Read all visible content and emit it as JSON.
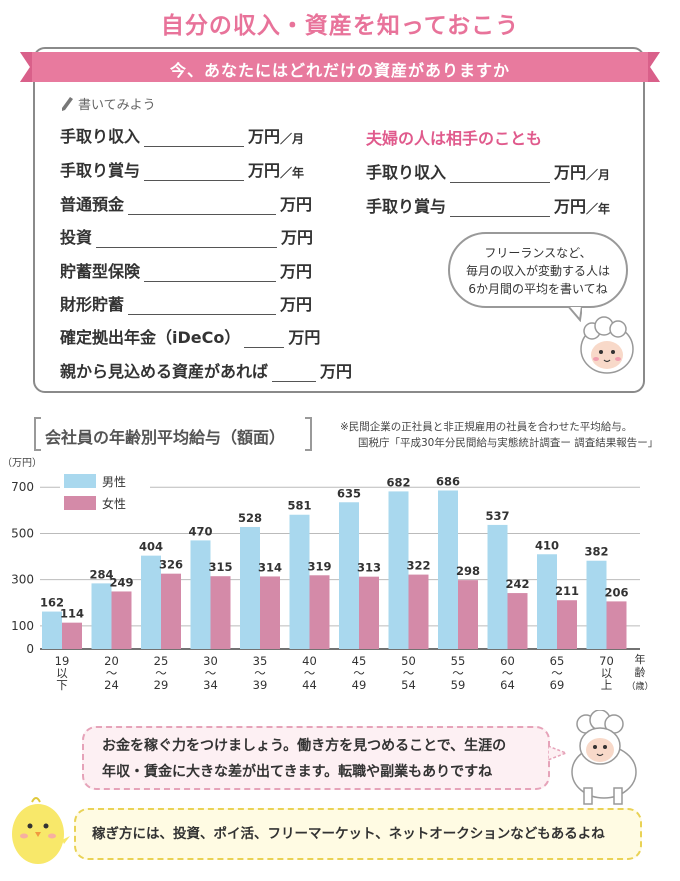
{
  "title": "自分の収入・資産を知っておこう",
  "section": {
    "ribbon_label": "今、あなたにはどれだけの資産がありますか",
    "write_hint": "書いてみよう",
    "left_items": [
      {
        "label": "手取り収入",
        "unit": "万円",
        "suffix": "／月"
      },
      {
        "label": "手取り賞与",
        "unit": "万円",
        "suffix": "／年"
      },
      {
        "label": "普通預金",
        "unit": "万円",
        "suffix": ""
      },
      {
        "label": "投資",
        "unit": "万円",
        "suffix": ""
      },
      {
        "label": "貯蓄型保険",
        "unit": "万円",
        "suffix": ""
      },
      {
        "label": "財形貯蓄",
        "unit": "万円",
        "suffix": ""
      },
      {
        "label": "確定拠出年金（iDeCo）",
        "unit": "万円",
        "suffix": ""
      },
      {
        "label": "親から見込める資産があれば",
        "unit": "万円",
        "suffix": ""
      }
    ],
    "spouse_title": "夫婦の人は相手のことも",
    "right_items": [
      {
        "label": "手取り収入",
        "unit": "万円",
        "suffix": "／月"
      },
      {
        "label": "手取り賞与",
        "unit": "万円",
        "suffix": "／年"
      }
    ],
    "bubble_lines": [
      "フリーランスなど、",
      "毎月の収入が変動する人は",
      "6か月間の平均を書いてね"
    ]
  },
  "chart_header": {
    "title": "会社員の年齢別平均給与（額面）",
    "note1": "※民間企業の正社員と非正規雇用の社員を合わせた平均給与。",
    "note2": "国税庁「平成30年分民間給与実態統計調査ー 調査結果報告ー」"
  },
  "chart_data": {
    "type": "bar",
    "ylabel": "（万円）",
    "ylim": [
      0,
      740
    ],
    "yticks": [
      0,
      100,
      300,
      500,
      700
    ],
    "categories": [
      [
        "19",
        "以",
        "下"
      ],
      [
        "20",
        "〜",
        "24"
      ],
      [
        "25",
        "〜",
        "29"
      ],
      [
        "30",
        "〜",
        "34"
      ],
      [
        "35",
        "〜",
        "39"
      ],
      [
        "40",
        "〜",
        "44"
      ],
      [
        "45",
        "〜",
        "49"
      ],
      [
        "50",
        "〜",
        "54"
      ],
      [
        "55",
        "〜",
        "59"
      ],
      [
        "60",
        "〜",
        "64"
      ],
      [
        "65",
        "〜",
        "69"
      ],
      [
        "70",
        "以",
        "上"
      ]
    ],
    "xlabel": [
      "年",
      "齢",
      "（歳）"
    ],
    "series": [
      {
        "name": "男性",
        "color": "#a9d8ee",
        "values": [
          162,
          284,
          404,
          470,
          528,
          581,
          635,
          682,
          686,
          537,
          410,
          382
        ]
      },
      {
        "name": "女性",
        "color": "#d48aa8",
        "values": [
          114,
          249,
          326,
          315,
          314,
          319,
          313,
          322,
          298,
          242,
          211,
          206
        ]
      }
    ],
    "legend": "top-left",
    "grid": true
  },
  "speech1": [
    "お金を稼ぐ力をつけましょう。働き方を見つめることで、生涯の",
    "年収・賃金に大きな差が出てきます。転職や副業もありですね"
  ],
  "speech2": "稼ぎ方には、投資、ポイ活、フリーマーケット、ネットオークションなどもあるよね",
  "colors": {
    "accent": "#e8739a",
    "male": "#a9d8ee",
    "female": "#d48aa8"
  }
}
